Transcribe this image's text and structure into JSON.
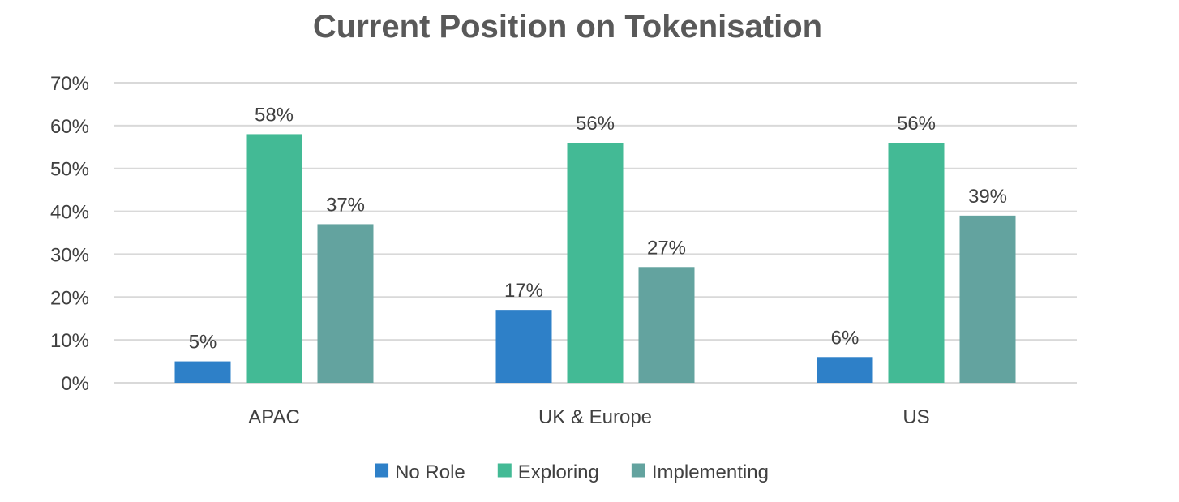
{
  "chart_data": {
    "type": "bar",
    "title": "Current Position on Tokenisation",
    "categories": [
      "APAC",
      "UK & Europe",
      "US"
    ],
    "series": [
      {
        "name": "No Role",
        "values": [
          5,
          17,
          6
        ],
        "color": "#2E80C8"
      },
      {
        "name": "Exploring",
        "values": [
          58,
          56,
          56
        ],
        "color": "#43BA95"
      },
      {
        "name": "Implementing",
        "values": [
          37,
          27,
          39
        ],
        "color": "#63A39F"
      }
    ],
    "data_labels": [
      [
        "5%",
        "17%",
        "6%"
      ],
      [
        "58%",
        "56%",
        "56%"
      ],
      [
        "37%",
        "27%",
        "39%"
      ]
    ],
    "y_ticks": [
      "0%",
      "10%",
      "20%",
      "30%",
      "40%",
      "50%",
      "60%",
      "70%"
    ],
    "ylim": [
      0,
      70
    ],
    "y_unit": "%",
    "grid": true,
    "legend_position": "bottom",
    "xlabel": "",
    "ylabel": ""
  }
}
